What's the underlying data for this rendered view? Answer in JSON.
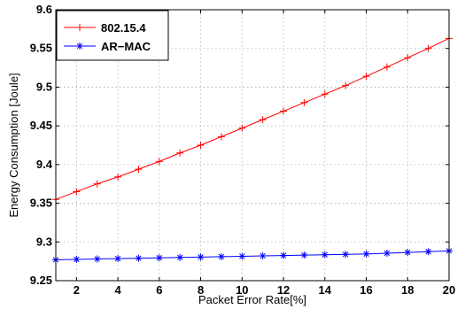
{
  "chart_data": {
    "type": "line",
    "xlabel": "Packet Error Rate[%]",
    "ylabel": "Energy Consumption [Joule]",
    "xlim": [
      1,
      20
    ],
    "ylim": [
      9.25,
      9.6
    ],
    "x_ticks": [
      2,
      4,
      6,
      8,
      10,
      12,
      14,
      16,
      18,
      20
    ],
    "y_ticks": [
      9.25,
      9.3,
      9.35,
      9.4,
      9.45,
      9.5,
      9.55,
      9.6
    ],
    "grid": true,
    "legend_position": "top-left",
    "x": [
      1,
      2,
      3,
      4,
      5,
      6,
      7,
      8,
      9,
      10,
      11,
      12,
      13,
      14,
      15,
      16,
      17,
      18,
      19,
      20
    ],
    "series": [
      {
        "name": "802.15.4",
        "color": "#ff0000",
        "marker": "plus",
        "values": [
          9.355,
          9.365,
          9.375,
          9.384,
          9.394,
          9.404,
          9.415,
          9.425,
          9.436,
          9.447,
          9.458,
          9.469,
          9.48,
          9.491,
          9.502,
          9.514,
          9.526,
          9.538,
          9.55,
          9.563
        ]
      },
      {
        "name": "AR−MAC",
        "color": "#0000ff",
        "marker": "asterisk",
        "values": [
          9.277,
          9.2775,
          9.278,
          9.2785,
          9.279,
          9.2795,
          9.28,
          9.2805,
          9.281,
          9.2815,
          9.282,
          9.2825,
          9.283,
          9.2835,
          9.284,
          9.2845,
          9.2855,
          9.2865,
          9.2875,
          9.2885
        ]
      }
    ]
  }
}
